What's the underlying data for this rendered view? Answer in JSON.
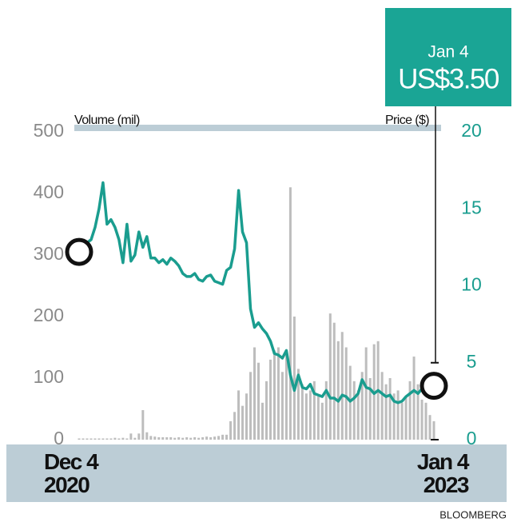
{
  "chart_data": {
    "type": "bar_line",
    "axis_label_left": "Volume (mil)",
    "axis_label_right": "Price ($)",
    "source": "BLOOMBERG",
    "annotation": {
      "date": "Jan 4",
      "text": "US$3.50"
    },
    "categories": [
      "Dec 4\n2020",
      null,
      null,
      null,
      null,
      null,
      null,
      null,
      null,
      null,
      null,
      null,
      null,
      null,
      null,
      null,
      null,
      null,
      null,
      null,
      null,
      null,
      null,
      null,
      null,
      null,
      null,
      null,
      null,
      null,
      null,
      null,
      null,
      null,
      null,
      null,
      null,
      null,
      null,
      null,
      null,
      null,
      null,
      null,
      null,
      null,
      null,
      null,
      null,
      null,
      null,
      null,
      null,
      null,
      null,
      null,
      null,
      null,
      null,
      null,
      null,
      null,
      null,
      null,
      null,
      null,
      null,
      null,
      null,
      null,
      null,
      null,
      null,
      null,
      null,
      null,
      null,
      null,
      null,
      null,
      null,
      null,
      null,
      null,
      null,
      null,
      null,
      null,
      null,
      "Jan 4\n2023"
    ],
    "series": [
      {
        "name": "Volume (mil)",
        "color": "#bdbdbd",
        "kind": "bar",
        "axis": "y",
        "values": [
          2,
          2,
          2,
          2,
          2,
          2,
          2,
          2,
          2,
          3,
          2,
          3,
          2,
          10,
          3,
          10,
          48,
          12,
          6,
          5,
          4,
          4,
          4,
          4,
          3,
          4,
          3,
          4,
          3,
          4,
          3,
          4,
          5,
          4,
          5,
          6,
          8,
          8,
          30,
          45,
          80,
          55,
          75,
          110,
          150,
          125,
          60,
          95,
          130,
          145,
          150,
          110,
          140,
          410,
          200,
          115,
          90,
          75,
          80,
          95,
          70,
          60,
          95,
          205,
          190,
          160,
          175,
          150,
          120,
          95,
          80,
          110,
          150,
          100,
          155,
          160,
          110,
          90,
          100,
          75,
          80,
          60,
          70,
          95,
          135,
          90,
          65,
          60,
          40,
          30
        ]
      },
      {
        "name": "Price ($)",
        "color": "#1a9d8f",
        "kind": "line",
        "axis": "y2",
        "values": [
          12.2,
          12.4,
          12.8,
          13.0,
          13.8,
          15.0,
          16.7,
          14.0,
          14.3,
          13.8,
          13.0,
          11.5,
          14.0,
          11.6,
          12.0,
          13.5,
          12.5,
          13.2,
          11.8,
          11.8,
          11.5,
          11.7,
          11.4,
          11.8,
          11.6,
          11.3,
          10.8,
          10.6,
          10.6,
          10.8,
          10.4,
          10.3,
          10.6,
          10.7,
          10.3,
          10.2,
          10.1,
          11.0,
          11.2,
          12.4,
          16.2,
          13.5,
          12.8,
          8.5,
          7.3,
          7.6,
          7.2,
          6.9,
          6.4,
          5.6,
          5.5,
          5.3,
          5.8,
          4.2,
          3.2,
          4.2,
          3.4,
          3.3,
          3.6,
          3.0,
          2.9,
          2.8,
          3.2,
          2.7,
          2.7,
          2.5,
          2.9,
          2.8,
          2.5,
          2.7,
          3.0,
          3.9,
          3.4,
          3.3,
          3.0,
          3.2,
          3.0,
          2.8,
          2.9,
          2.5,
          2.4,
          2.5,
          2.8,
          3.0,
          3.2,
          3.0,
          3.3,
          3.5,
          3.4,
          3.5
        ]
      }
    ],
    "ylim": [
      0,
      500
    ],
    "yticks": [
      0,
      100,
      200,
      300,
      400,
      500
    ],
    "y2lim": [
      0,
      20
    ],
    "y2ticks": [
      0,
      5,
      10,
      15,
      20
    ],
    "grid": false
  }
}
